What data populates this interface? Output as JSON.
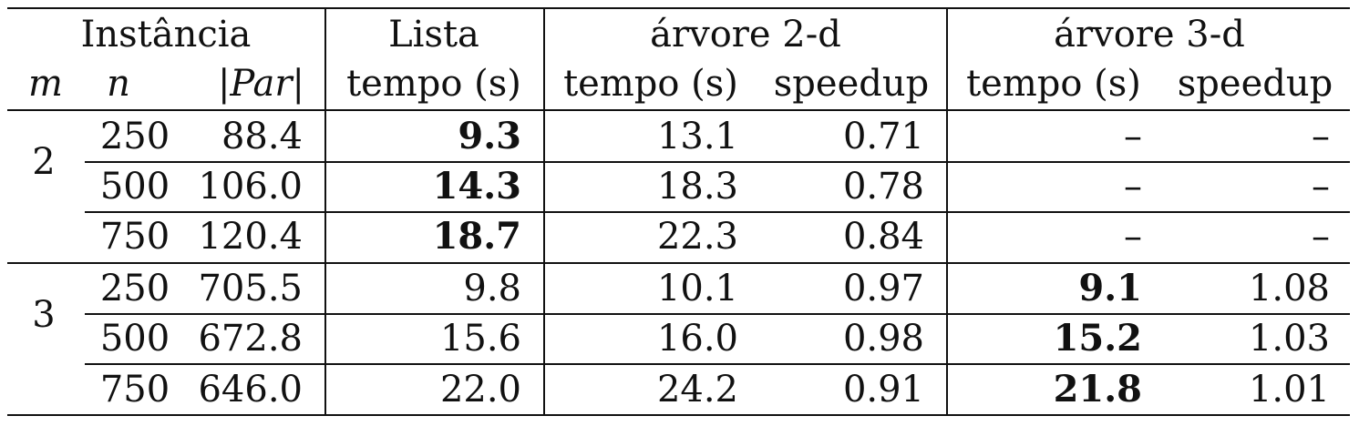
{
  "table": {
    "groups": {
      "instancia": "Instância",
      "lista": "Lista",
      "arvore2d": "árvore 2-d",
      "arvore3d": "árvore 3-d"
    },
    "headers": {
      "m": "m",
      "n": "n",
      "par": "|Par|",
      "lista_tempo": "tempo (s)",
      "a2_tempo": "tempo (s)",
      "a2_speedup": "speedup",
      "a3_tempo": "tempo (s)",
      "a3_speedup": "speedup"
    },
    "blocks": [
      {
        "m": "2",
        "rows": [
          {
            "n": "250",
            "par": "88.4",
            "lista": "9.3",
            "a2_tempo": "13.1",
            "a2_speedup": "0.71",
            "a3_tempo": "–",
            "a3_speedup": "–"
          },
          {
            "n": "500",
            "par": "106.0",
            "lista": "14.3",
            "a2_tempo": "18.3",
            "a2_speedup": "0.78",
            "a3_tempo": "–",
            "a3_speedup": "–"
          },
          {
            "n": "750",
            "par": "120.4",
            "lista": "18.7",
            "a2_tempo": "22.3",
            "a2_speedup": "0.84",
            "a3_tempo": "–",
            "a3_speedup": "–"
          }
        ]
      },
      {
        "m": "3",
        "rows": [
          {
            "n": "250",
            "par": "705.5",
            "lista": "9.8",
            "a2_tempo": "10.1",
            "a2_speedup": "0.97",
            "a3_tempo": "9.1",
            "a3_speedup": "1.08"
          },
          {
            "n": "500",
            "par": "672.8",
            "lista": "15.6",
            "a2_tempo": "16.0",
            "a2_speedup": "0.98",
            "a3_tempo": "15.2",
            "a3_speedup": "1.03"
          },
          {
            "n": "750",
            "par": "646.0",
            "lista": "22.0",
            "a2_tempo": "24.2",
            "a2_speedup": "0.91",
            "a3_tempo": "21.8",
            "a3_speedup": "1.01"
          }
        ]
      }
    ]
  }
}
